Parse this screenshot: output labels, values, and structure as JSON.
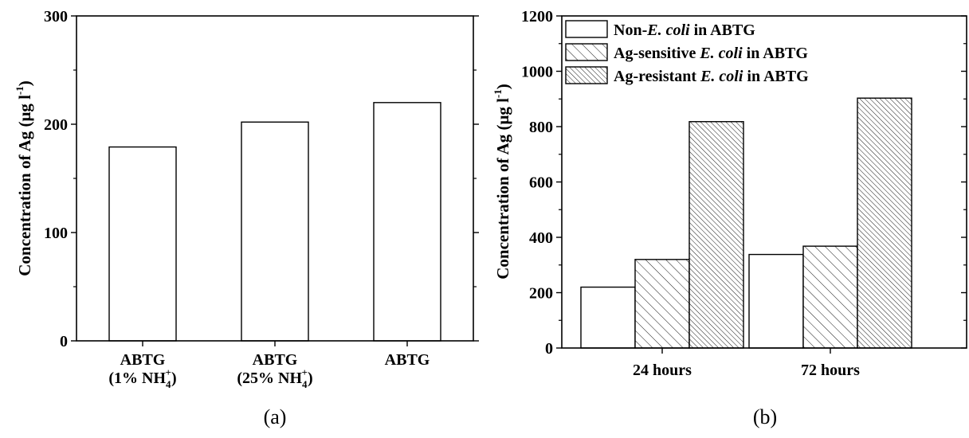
{
  "chart_data": [
    {
      "type": "bar",
      "panel_label": "(a)",
      "ylabel": "Concentration of Ag (μg l⁻¹)",
      "ylabel_main": "Concentration of Ag (μg l",
      "ylabel_sup": "-1",
      "ylabel_close": ")",
      "ylim": [
        0,
        300
      ],
      "yticks": [
        0,
        100,
        200,
        300
      ],
      "categories": [
        "ABTG (1% NH4+)",
        "ABTG (25% NH4+)",
        "ABTG"
      ],
      "category_lines": [
        [
          "ABTG",
          "(1% NH",
          "4",
          "+",
          ")"
        ],
        [
          "ABTG",
          "(25% NH",
          "4",
          "+",
          ")"
        ],
        [
          "ABTG"
        ]
      ],
      "values": [
        179,
        202,
        220
      ],
      "grid": false,
      "colors": {
        "bar_fill": "#ffffff",
        "bar_stroke": "#000000"
      }
    },
    {
      "type": "bar",
      "panel_label": "(b)",
      "ylabel": "Concentration of Ag (μg l⁻¹)",
      "ylabel_main": "Concentration of Ag (μg l",
      "ylabel_sup": "-1",
      "ylabel_close": ")",
      "ylim": [
        0,
        1200
      ],
      "yticks": [
        0,
        200,
        400,
        600,
        800,
        1000,
        1200
      ],
      "categories": [
        "24 hours",
        "72 hours"
      ],
      "series": [
        {
          "name": "Non-E. coli in ABTG",
          "name_parts": [
            "Non-",
            "E. coli",
            " in ABTG"
          ],
          "values": [
            220,
            338
          ],
          "pattern": "none"
        },
        {
          "name": "Ag-sensitive E. coli in ABTG",
          "name_parts": [
            "Ag-sensitive ",
            "E. coli",
            " in ABTG"
          ],
          "values": [
            320,
            368
          ],
          "pattern": "sparse"
        },
        {
          "name": "Ag-resistant E. coli in ABTG",
          "name_parts": [
            "Ag-resistant ",
            "E. coli",
            " in ABTG"
          ],
          "values": [
            818,
            903
          ],
          "pattern": "dense"
        }
      ],
      "legend_position": "top-left",
      "grid": false,
      "colors": {
        "bar_fill": "#ffffff",
        "bar_stroke": "#000000"
      }
    }
  ]
}
